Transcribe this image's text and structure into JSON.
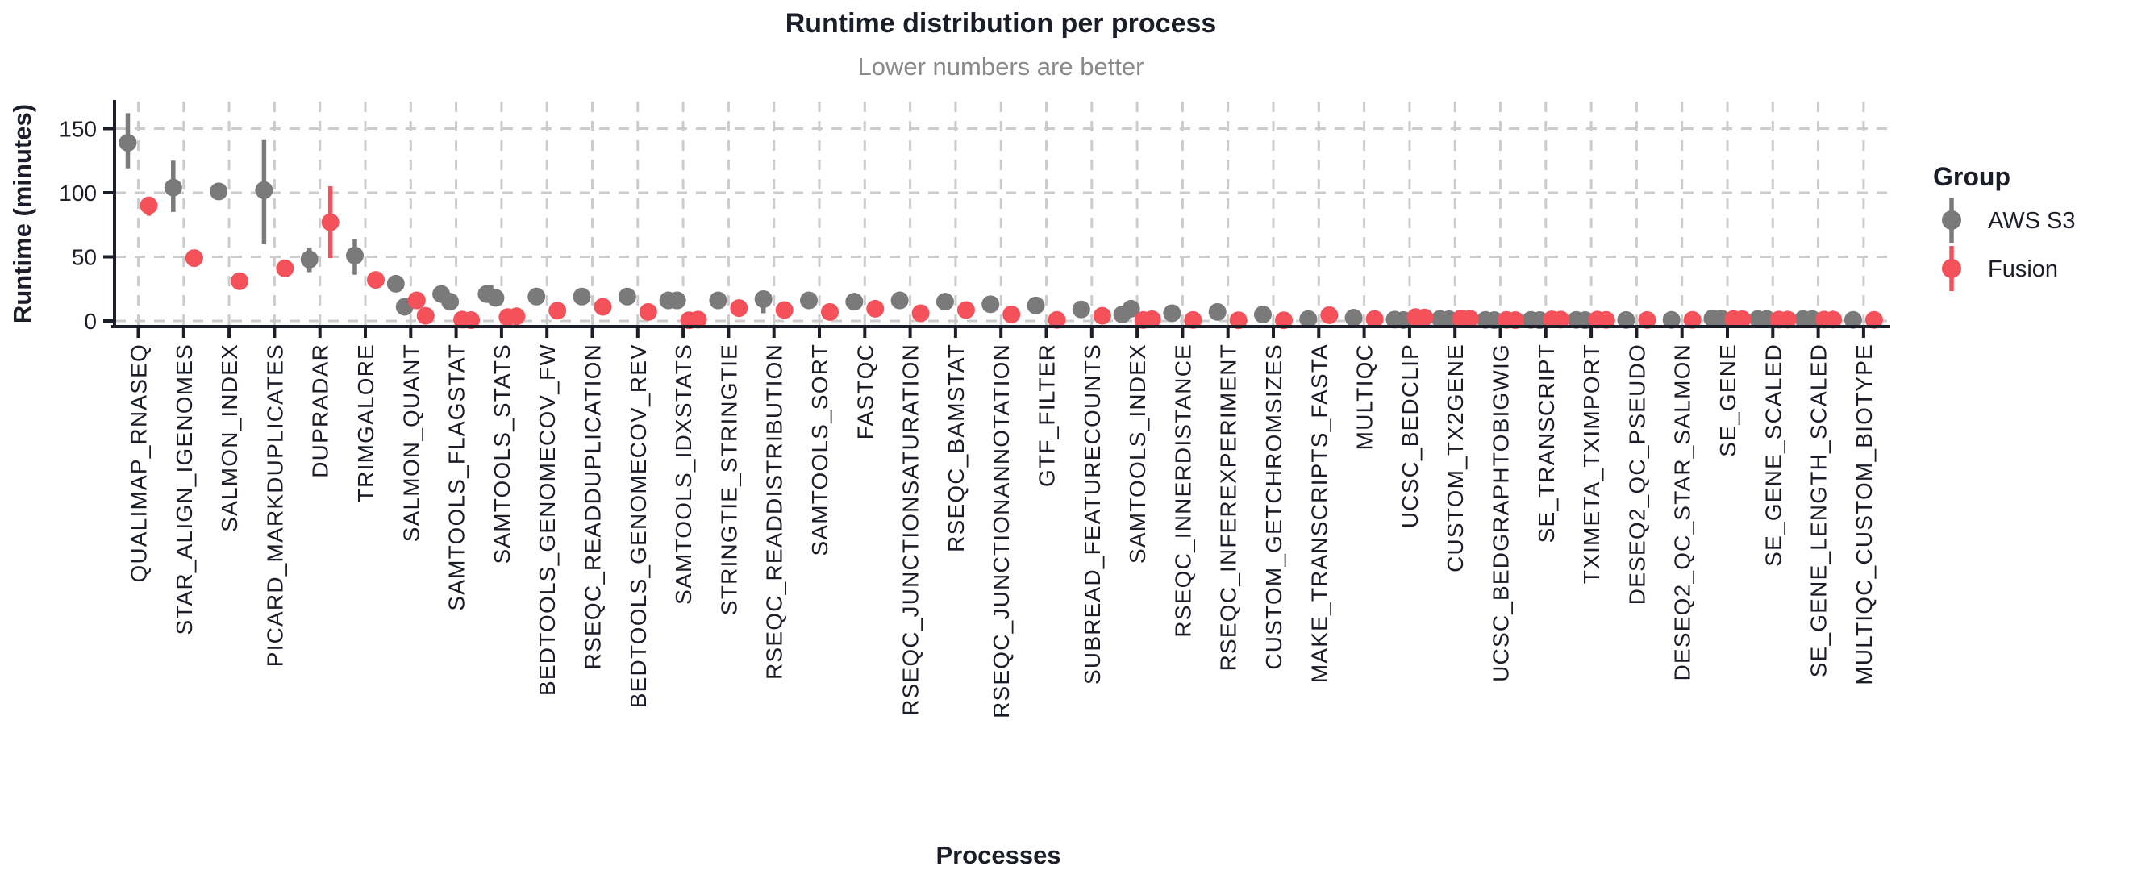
{
  "chart_data": {
    "type": "scatter",
    "title": "Runtime distribution per process",
    "subtitle": "Lower numbers are better",
    "xlabel": "Processes",
    "ylabel": "Runtime (minutes)",
    "y_ticks": [
      0,
      50,
      100,
      150
    ],
    "ylim": [
      0,
      172
    ],
    "grid": {
      "style": "dashed",
      "on": true
    },
    "legend": {
      "title": "Group",
      "position": "right"
    },
    "colors": {
      "aws_s3": "#7a7a7a",
      "fusion": "#f4515a",
      "text": "#1b1d28",
      "subtitle": "#8a8a8a",
      "grid": "#cccccc",
      "axis": "#1b1d28"
    },
    "groups": [
      {
        "key": "aws_s3",
        "name": "AWS S3"
      },
      {
        "key": "fusion",
        "name": "Fusion"
      }
    ],
    "processes": [
      {
        "name": "QUALIMAP_RNASEQ",
        "aws_s3": {
          "values": [
            139
          ],
          "range": [
            119,
            162
          ]
        },
        "fusion": {
          "values": [
            90
          ],
          "range": [
            82,
            97
          ]
        }
      },
      {
        "name": "STAR_ALIGN_IGENOMES",
        "aws_s3": {
          "values": [
            104
          ],
          "range": [
            85,
            125
          ]
        },
        "fusion": {
          "values": [
            49
          ]
        }
      },
      {
        "name": "SALMON_INDEX",
        "aws_s3": {
          "values": [
            101
          ]
        },
        "fusion": {
          "values": [
            31
          ]
        }
      },
      {
        "name": "PICARD_MARKDUPLICATES",
        "aws_s3": {
          "values": [
            102
          ],
          "range": [
            60,
            141
          ]
        },
        "fusion": {
          "values": [
            41
          ]
        }
      },
      {
        "name": "DUPRADAR",
        "aws_s3": {
          "values": [
            48
          ],
          "range": [
            38,
            57
          ]
        },
        "fusion": {
          "values": [
            77
          ],
          "range": [
            49,
            105
          ]
        }
      },
      {
        "name": "TRIMGALORE",
        "aws_s3": {
          "values": [
            51
          ],
          "range": [
            36,
            64
          ]
        },
        "fusion": {
          "values": [
            32
          ]
        }
      },
      {
        "name": "SALMON_QUANT",
        "aws_s3": {
          "values": [
            29,
            11
          ]
        },
        "fusion": {
          "values": [
            16,
            4
          ]
        }
      },
      {
        "name": "SAMTOOLS_FLAGSTAT",
        "aws_s3": {
          "values": [
            21,
            15
          ]
        },
        "fusion": {
          "values": [
            1,
            0.6
          ]
        }
      },
      {
        "name": "SAMTOOLS_STATS",
        "aws_s3": {
          "values": [
            21,
            18
          ],
          "range": [
            14,
            28
          ]
        },
        "fusion": {
          "values": [
            3,
            3.6
          ]
        }
      },
      {
        "name": "BEDTOOLS_GENOMECOV_FW",
        "aws_s3": {
          "values": [
            19
          ]
        },
        "fusion": {
          "values": [
            8
          ]
        }
      },
      {
        "name": "RSEQC_READDUPLICATION",
        "aws_s3": {
          "values": [
            19
          ]
        },
        "fusion": {
          "values": [
            11
          ]
        }
      },
      {
        "name": "BEDTOOLS_GENOMECOV_REV",
        "aws_s3": {
          "values": [
            19
          ]
        },
        "fusion": {
          "values": [
            7
          ]
        }
      },
      {
        "name": "SAMTOOLS_IDXSTATS",
        "aws_s3": {
          "values": [
            16,
            16
          ]
        },
        "fusion": {
          "values": [
            0.5,
            1
          ]
        }
      },
      {
        "name": "STRINGTIE_STRINGTIE",
        "aws_s3": {
          "values": [
            16
          ]
        },
        "fusion": {
          "values": [
            10
          ]
        }
      },
      {
        "name": "RSEQC_READDISTRIBUTION",
        "aws_s3": {
          "values": [
            17
          ],
          "range": [
            6,
            23
          ]
        },
        "fusion": {
          "values": [
            8.5
          ]
        }
      },
      {
        "name": "SAMTOOLS_SORT",
        "aws_s3": {
          "values": [
            16
          ]
        },
        "fusion": {
          "values": [
            7
          ]
        }
      },
      {
        "name": "FASTQC",
        "aws_s3": {
          "values": [
            15
          ]
        },
        "fusion": {
          "values": [
            9.5
          ]
        }
      },
      {
        "name": "RSEQC_JUNCTIONSATURATION",
        "aws_s3": {
          "values": [
            16
          ]
        },
        "fusion": {
          "values": [
            6
          ]
        }
      },
      {
        "name": "RSEQC_BAMSTAT",
        "aws_s3": {
          "values": [
            15
          ]
        },
        "fusion": {
          "values": [
            8.5
          ]
        }
      },
      {
        "name": "RSEQC_JUNCTIONANNOTATION",
        "aws_s3": {
          "values": [
            13
          ]
        },
        "fusion": {
          "values": [
            5
          ]
        }
      },
      {
        "name": "GTF_FILTER",
        "aws_s3": {
          "values": [
            12
          ]
        },
        "fusion": {
          "values": [
            0.8
          ]
        }
      },
      {
        "name": "SUBREAD_FEATURECOUNTS",
        "aws_s3": {
          "values": [
            9
          ]
        },
        "fusion": {
          "values": [
            4
          ]
        }
      },
      {
        "name": "SAMTOOLS_INDEX",
        "aws_s3": {
          "values": [
            5,
            9.5
          ]
        },
        "fusion": {
          "values": [
            0.7,
            1.3
          ]
        }
      },
      {
        "name": "RSEQC_INNERDISTANCE",
        "aws_s3": {
          "values": [
            6
          ]
        },
        "fusion": {
          "values": [
            0.7
          ]
        }
      },
      {
        "name": "RSEQC_INFEREXPERIMENT",
        "aws_s3": {
          "values": [
            7
          ]
        },
        "fusion": {
          "values": [
            0.5
          ]
        }
      },
      {
        "name": "CUSTOM_GETCHROMSIZES",
        "aws_s3": {
          "values": [
            5
          ]
        },
        "fusion": {
          "values": [
            0.5
          ]
        }
      },
      {
        "name": "MAKE_TRANSCRIPTS_FASTA",
        "aws_s3": {
          "values": [
            1.5
          ]
        },
        "fusion": {
          "values": [
            4.5
          ]
        }
      },
      {
        "name": "MULTIQC",
        "aws_s3": {
          "values": [
            2.5
          ]
        },
        "fusion": {
          "values": [
            1.5
          ]
        }
      },
      {
        "name": "UCSC_BEDCLIP",
        "aws_s3": {
          "values": [
            1,
            0.7
          ]
        },
        "fusion": {
          "values": [
            3,
            2.7
          ]
        }
      },
      {
        "name": "CUSTOM_TX2GENE",
        "aws_s3": {
          "values": [
            1.5,
            1.3
          ]
        },
        "fusion": {
          "values": [
            2,
            1.8
          ]
        }
      },
      {
        "name": "UCSC_BEDGRAPHTOBIGWIG",
        "aws_s3": {
          "values": [
            0.8,
            0.6
          ]
        },
        "fusion": {
          "values": [
            0.8,
            0.6
          ]
        }
      },
      {
        "name": "SE_TRANSCRIPT",
        "aws_s3": {
          "values": [
            0.8,
            0.6
          ]
        },
        "fusion": {
          "values": [
            1.2,
            1
          ]
        }
      },
      {
        "name": "TXIMETA_TXIMPORT",
        "aws_s3": {
          "values": [
            0.8,
            0.6
          ]
        },
        "fusion": {
          "values": [
            1,
            0.8
          ]
        }
      },
      {
        "name": "DESEQ2_QC_PSEUDO",
        "aws_s3": {
          "values": [
            0.7
          ]
        },
        "fusion": {
          "values": [
            0.7
          ]
        }
      },
      {
        "name": "DESEQ2_QC_STAR_SALMON",
        "aws_s3": {
          "values": [
            0.8
          ]
        },
        "fusion": {
          "values": [
            0.8
          ]
        }
      },
      {
        "name": "SE_GENE",
        "aws_s3": {
          "values": [
            2,
            1.8
          ]
        },
        "fusion": {
          "values": [
            1.5,
            1.3
          ]
        }
      },
      {
        "name": "SE_GENE_SCALED",
        "aws_s3": {
          "values": [
            1.5,
            1.5
          ]
        },
        "fusion": {
          "values": [
            1,
            1
          ]
        }
      },
      {
        "name": "SE_GENE_LENGTH_SCALED",
        "aws_s3": {
          "values": [
            1.5,
            1.5
          ]
        },
        "fusion": {
          "values": [
            1,
            1
          ]
        }
      },
      {
        "name": "MULTIQC_CUSTOM_BIOTYPE",
        "aws_s3": {
          "values": [
            0.8
          ]
        },
        "fusion": {
          "values": [
            0.8
          ]
        }
      }
    ]
  }
}
